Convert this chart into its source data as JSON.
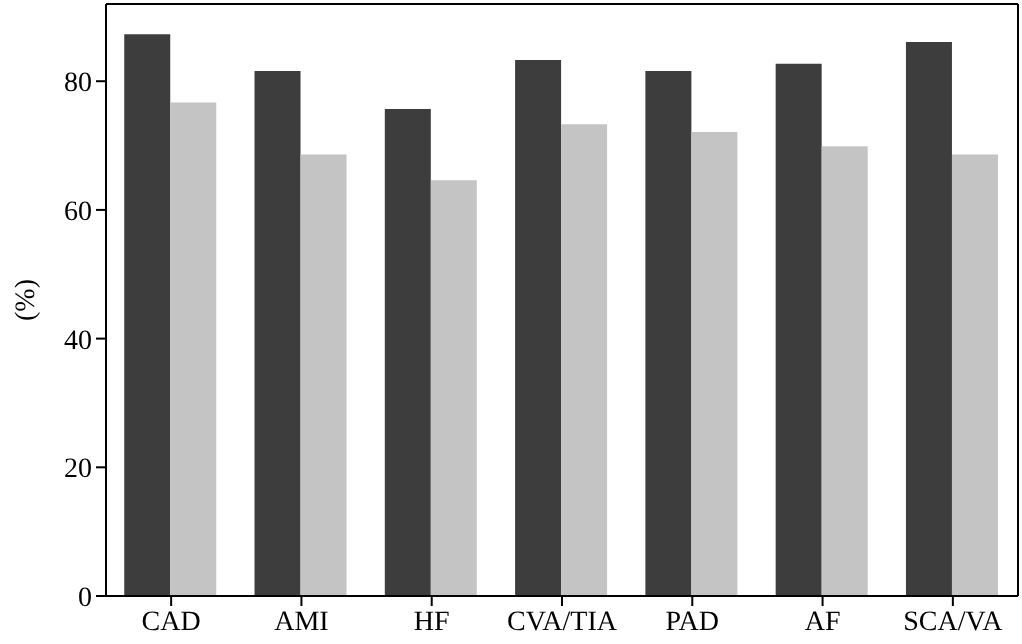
{
  "chart_data": {
    "type": "bar",
    "ylabel": "(%)",
    "categories": [
      "CAD",
      "AMI",
      "HF",
      "CVA/TIA",
      "PAD",
      "AF",
      "SCA/VA"
    ],
    "series": [
      {
        "color": "#3d3d3d",
        "values": [
          87.3,
          81.6,
          75.7,
          83.3,
          81.6,
          82.7,
          86.1
        ]
      },
      {
        "color": "#c4c4c4",
        "values": [
          76.7,
          68.6,
          64.6,
          73.3,
          72.1,
          69.9,
          68.6
        ]
      }
    ],
    "ylim": [
      0,
      92
    ],
    "yticks": [
      0,
      20,
      40,
      60,
      80
    ],
    "grid": false,
    "legend": false
  }
}
